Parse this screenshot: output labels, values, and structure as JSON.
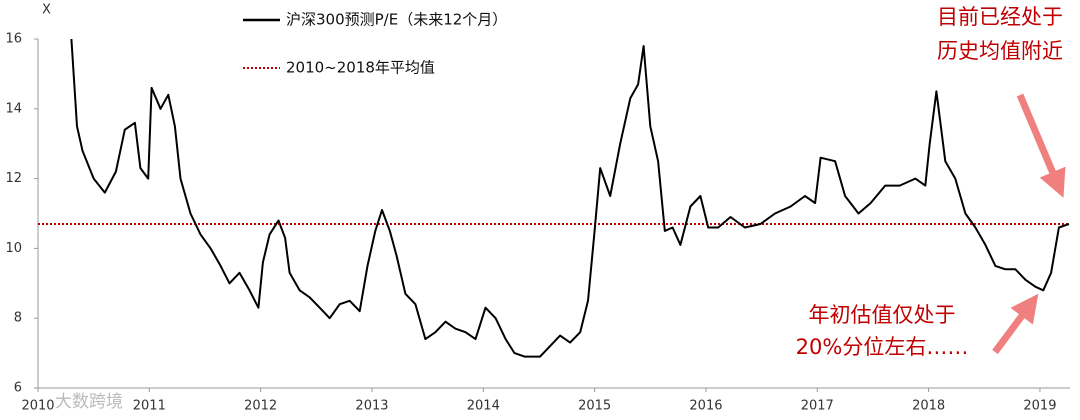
{
  "chart_data": {
    "type": "line",
    "y_axis_label": "X",
    "x": [
      2010.3,
      2010.35,
      2010.4,
      2010.5,
      2010.6,
      2010.7,
      2010.78,
      2010.87,
      2010.92,
      2010.99,
      2011.02,
      2011.1,
      2011.17,
      2011.23,
      2011.28,
      2011.37,
      2011.46,
      2011.55,
      2011.64,
      2011.72,
      2011.81,
      2011.9,
      2011.98,
      2012.02,
      2012.08,
      2012.16,
      2012.22,
      2012.26,
      2012.35,
      2012.44,
      2012.53,
      2012.62,
      2012.71,
      2012.8,
      2012.89,
      2012.96,
      2013.03,
      2013.09,
      2013.16,
      2013.22,
      2013.3,
      2013.39,
      2013.48,
      2013.57,
      2013.66,
      2013.75,
      2013.84,
      2013.93,
      2014.02,
      2014.11,
      2014.2,
      2014.28,
      2014.37,
      2014.51,
      2014.6,
      2014.69,
      2014.78,
      2014.87,
      2014.94,
      2015.0,
      2015.05,
      2015.14,
      2015.23,
      2015.32,
      2015.39,
      2015.44,
      2015.5,
      2015.57,
      2015.63,
      2015.7,
      2015.77,
      2015.86,
      2015.95,
      2016.02,
      2016.11,
      2016.22,
      2016.35,
      2016.49,
      2016.62,
      2016.76,
      2016.89,
      2016.98,
      2017.03,
      2017.16,
      2017.25,
      2017.37,
      2017.48,
      2017.61,
      2017.74,
      2017.88,
      2017.97,
      2018.01,
      2018.07,
      2018.15,
      2018.24,
      2018.33,
      2018.42,
      2018.51,
      2018.6,
      2018.69,
      2018.78,
      2018.87,
      2018.96,
      2019.03,
      2019.1,
      2019.17,
      2019.26
    ],
    "series": [
      {
        "name": "沪深300预测P/E（未来12个月）",
        "color": "#000000",
        "values": [
          16.0,
          13.5,
          12.8,
          12.0,
          11.6,
          12.2,
          13.4,
          13.6,
          12.3,
          12.0,
          14.6,
          14.0,
          14.4,
          13.5,
          12.0,
          11.0,
          10.4,
          10.0,
          9.5,
          9.0,
          9.3,
          8.8,
          8.3,
          9.6,
          10.4,
          10.8,
          10.3,
          9.3,
          8.8,
          8.6,
          8.3,
          8.0,
          8.4,
          8.5,
          8.2,
          9.5,
          10.5,
          11.1,
          10.5,
          9.8,
          8.7,
          8.4,
          7.4,
          7.6,
          7.9,
          7.7,
          7.6,
          7.4,
          8.3,
          8.0,
          7.4,
          7.0,
          6.9,
          6.9,
          7.2,
          7.5,
          7.3,
          7.6,
          8.5,
          10.5,
          12.3,
          11.5,
          13.0,
          14.3,
          14.7,
          15.8,
          13.5,
          12.5,
          10.5,
          10.6,
          10.1,
          11.2,
          11.5,
          10.6,
          10.6,
          10.9,
          10.6,
          10.7,
          11.0,
          11.2,
          11.5,
          11.3,
          12.6,
          12.5,
          11.5,
          11.0,
          11.3,
          11.8,
          11.8,
          12.0,
          11.8,
          13.0,
          14.5,
          12.5,
          12.0,
          11.0,
          10.6,
          10.1,
          9.5,
          9.4,
          9.4,
          9.1,
          8.9,
          8.8,
          9.3,
          10.6,
          10.7
        ]
      }
    ],
    "average": {
      "name": "2010~2018年平均值",
      "value": 10.7,
      "color": "#c00000"
    },
    "xlim": [
      2010,
      2019.27
    ],
    "xticks": [
      2010,
      2011,
      2012,
      2013,
      2014,
      2015,
      2016,
      2017,
      2018,
      2019
    ],
    "ylim": [
      6,
      16
    ],
    "yticks": [
      6,
      8,
      10,
      12,
      14,
      16
    ],
    "annotations": [
      "目前已经处于",
      "历史均值附近",
      "年初估值仅处于",
      "20%分位左右……"
    ],
    "watermark": "大数跨境"
  }
}
